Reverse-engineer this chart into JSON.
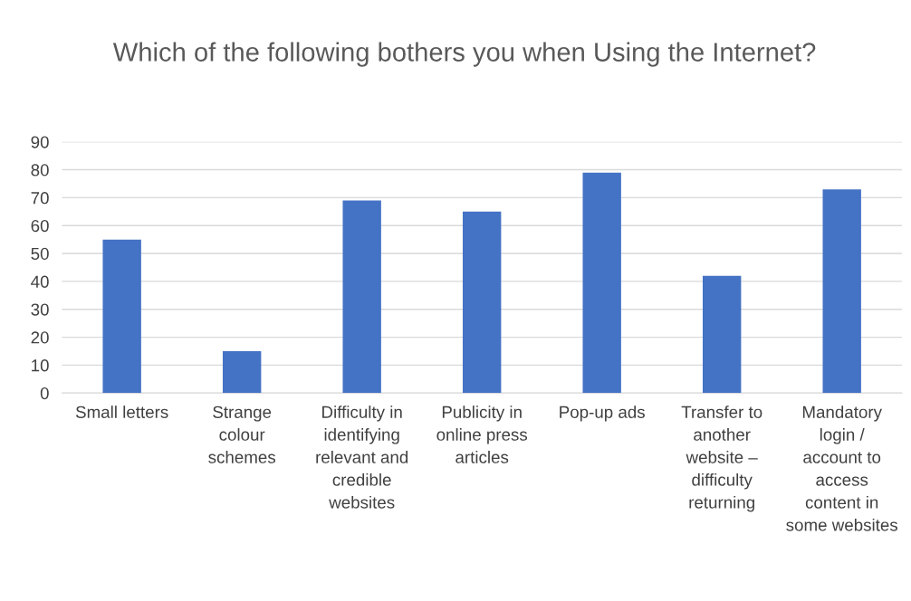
{
  "chart_data": {
    "type": "bar",
    "title": "Which of the following bothers you when Using the Internet?",
    "categories": [
      "Small letters",
      "Strange colour schemes",
      "Difficulty in identifying relevant and credible websites",
      "Publicity in online press articles",
      "Pop-up ads",
      "Transfer to another website – difficulty returning",
      "Mandatory login / account to access content in some websites"
    ],
    "values": [
      55,
      15,
      69,
      65,
      79,
      42,
      73
    ],
    "color": "#4472c4",
    "ylim": [
      0,
      90
    ],
    "yticks": [
      0,
      10,
      20,
      30,
      40,
      50,
      60,
      70,
      80,
      90
    ],
    "grid": "y",
    "legend": false
  }
}
